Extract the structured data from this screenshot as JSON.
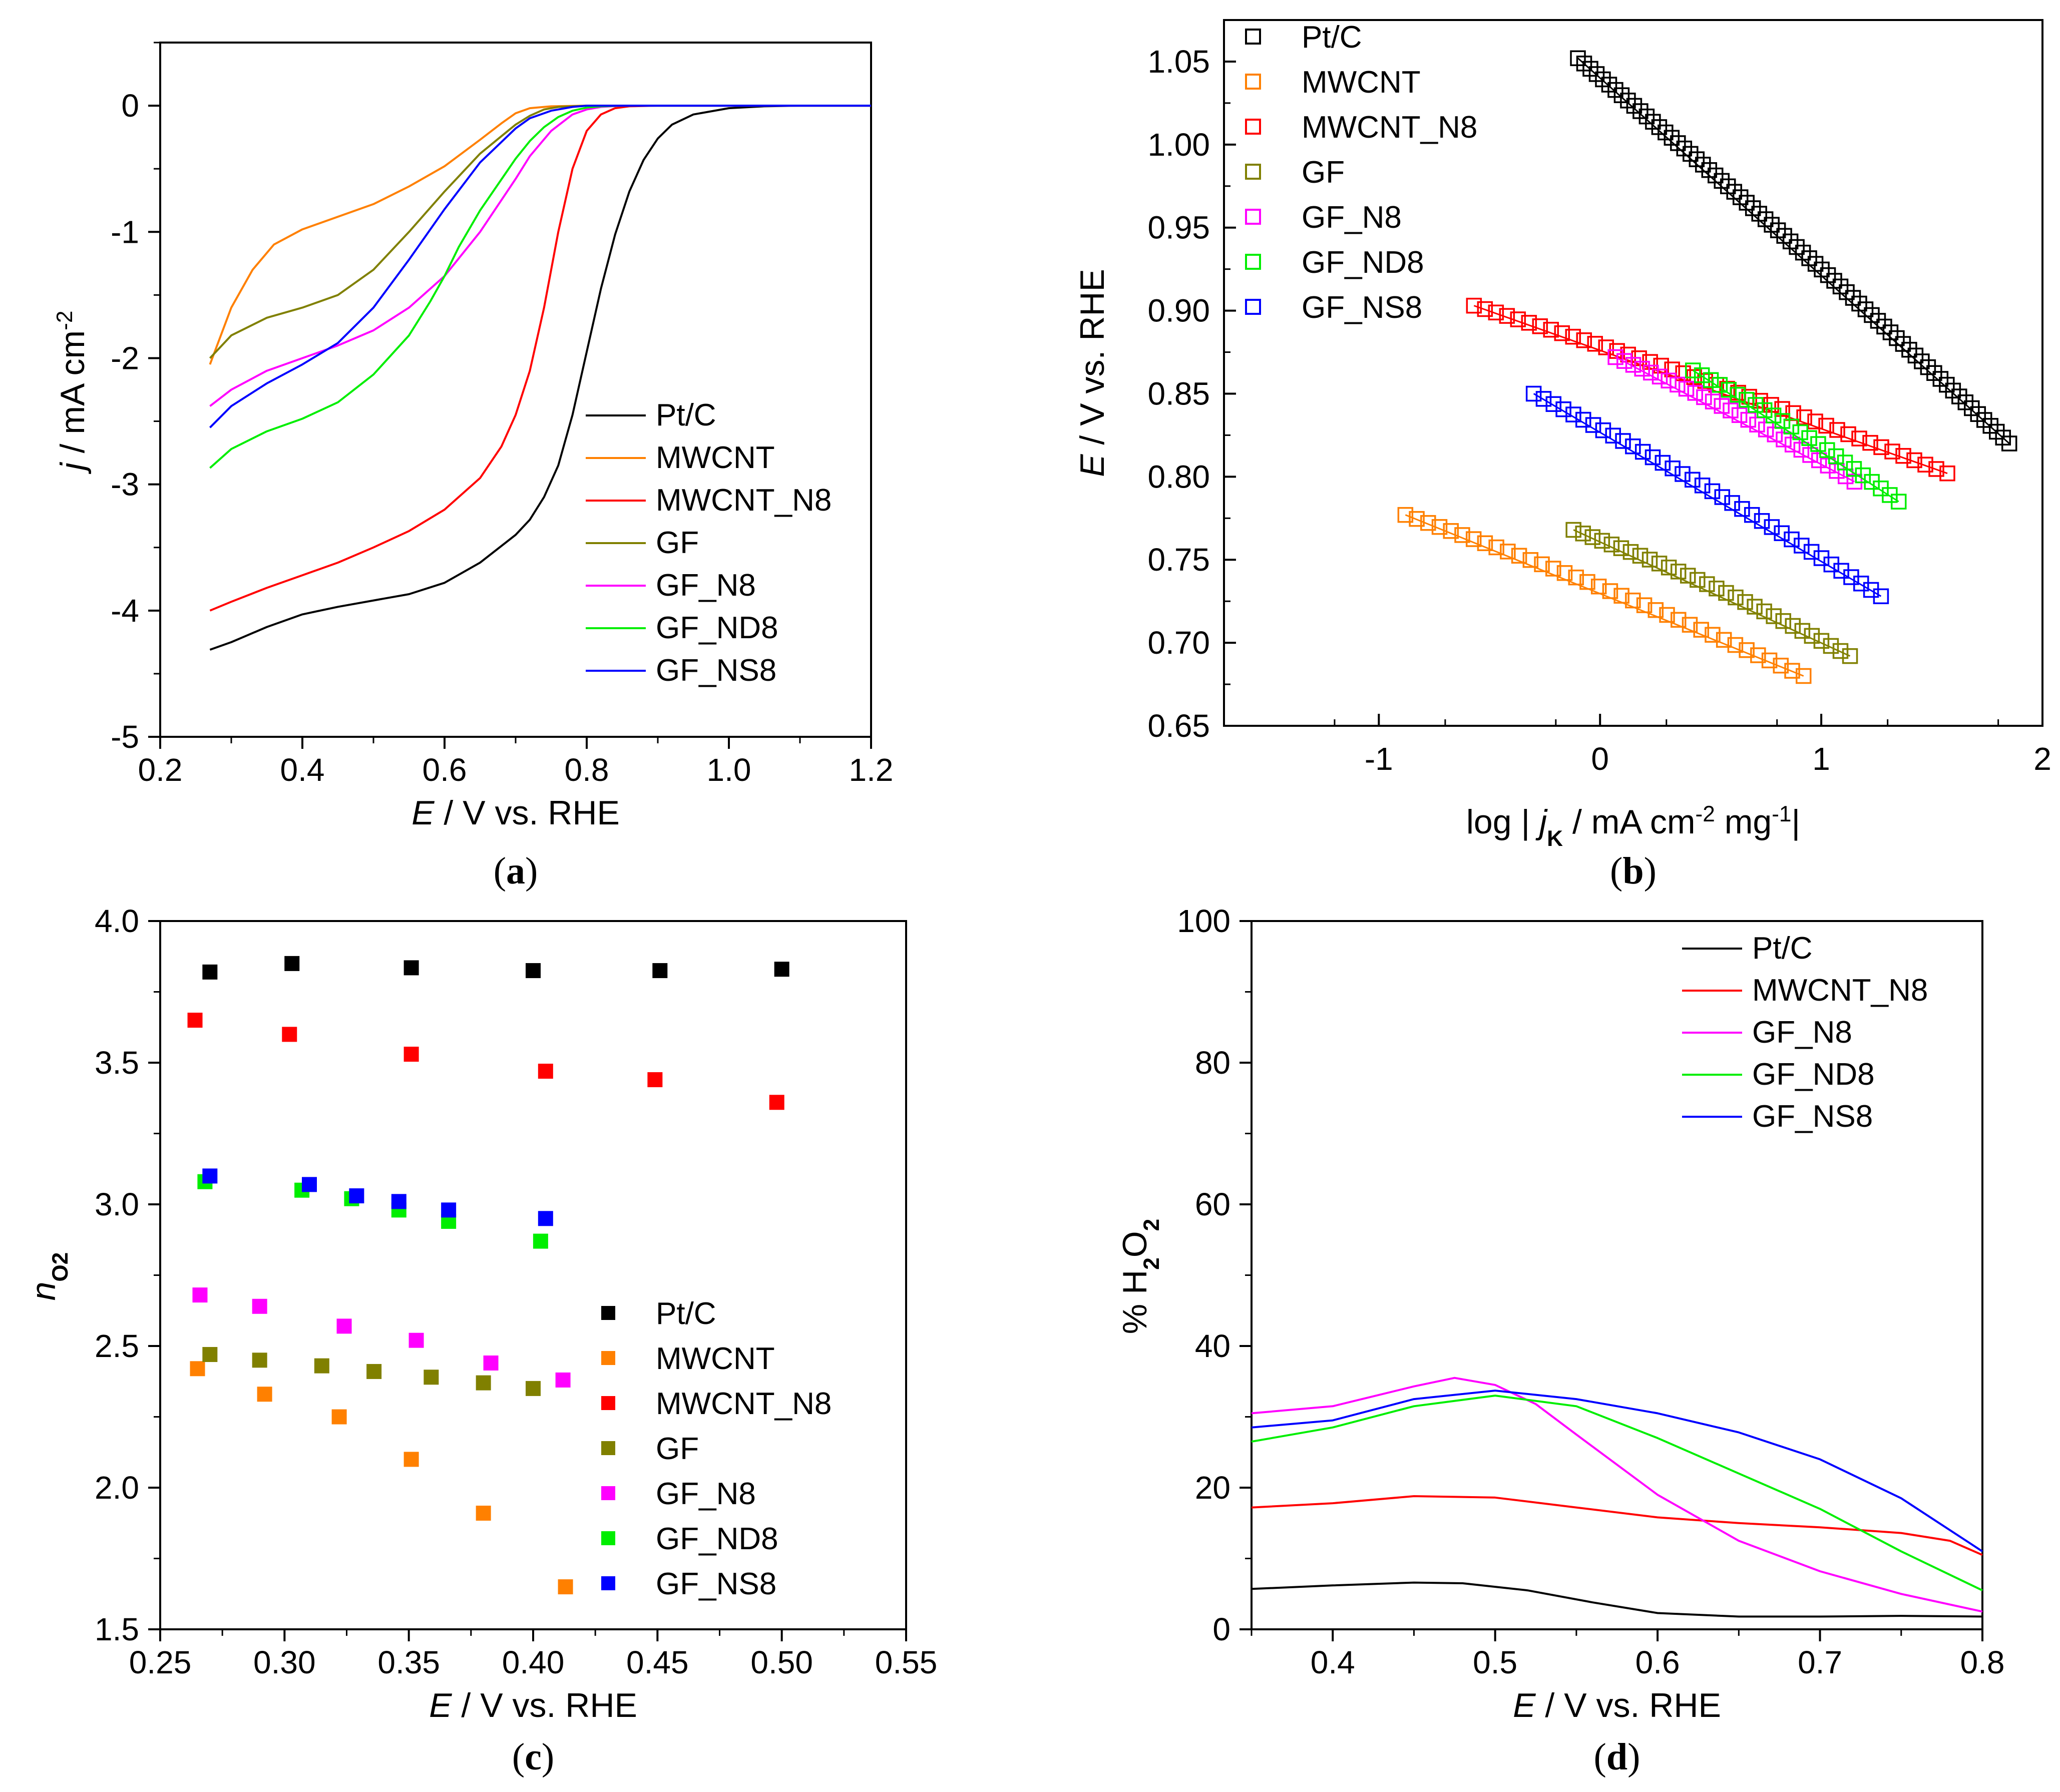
{
  "colors": {
    "Pt/C": "#000000",
    "MWCNT": "#ff8000",
    "MWCNT_N8": "#ff0000",
    "GF": "#808000",
    "GF_N8": "#ff00ff",
    "GF_ND8": "#00ee00",
    "GF_NS8": "#0000ff"
  },
  "chart_data": [
    {
      "panel": "a",
      "caption": [
        "(",
        "a",
        ")"
      ],
      "type": "line",
      "xlabel": [
        "E",
        " / V vs. RHE"
      ],
      "ylabel": [
        "j",
        " / mA cm",
        "-2"
      ],
      "xlim": [
        0.2,
        1.2
      ],
      "ylim": [
        -5,
        0.5
      ],
      "xticks": [
        "0.2",
        "0.4",
        "0.6",
        "0.8",
        "1.0",
        "1.2"
      ],
      "yticks": [
        "-5",
        "-4",
        "-3",
        "-2",
        "-1",
        "0"
      ],
      "legend": [
        "Pt/C",
        "MWCNT",
        "MWCNT_N8",
        "GF",
        "GF_N8",
        "GF_ND8",
        "GF_NS8"
      ],
      "series": [
        {
          "name": "Pt/C",
          "x": [
            0.27,
            0.3,
            0.35,
            0.4,
            0.45,
            0.5,
            0.55,
            0.6,
            0.65,
            0.7,
            0.72,
            0.74,
            0.76,
            0.78,
            0.8,
            0.82,
            0.84,
            0.86,
            0.88,
            0.9,
            0.92,
            0.95,
            1.0,
            1.05,
            1.1,
            1.2
          ],
          "y": [
            -4.31,
            -4.25,
            -4.13,
            -4.03,
            -3.97,
            -3.92,
            -3.87,
            -3.78,
            -3.62,
            -3.4,
            -3.28,
            -3.1,
            -2.85,
            -2.45,
            -1.95,
            -1.45,
            -1.02,
            -0.68,
            -0.43,
            -0.26,
            -0.15,
            -0.07,
            -0.02,
            -0.005,
            0.0,
            0.0
          ]
        },
        {
          "name": "MWCNT",
          "x": [
            0.27,
            0.3,
            0.33,
            0.36,
            0.4,
            0.45,
            0.5,
            0.55,
            0.6,
            0.65,
            0.68,
            0.7,
            0.72,
            0.75,
            0.8,
            1.2
          ],
          "y": [
            -2.05,
            -1.6,
            -1.3,
            -1.1,
            -0.98,
            -0.88,
            -0.78,
            -0.64,
            -0.48,
            -0.27,
            -0.14,
            -0.06,
            -0.02,
            -0.005,
            0.0,
            0.0
          ]
        },
        {
          "name": "MWCNT_N8",
          "x": [
            0.27,
            0.3,
            0.35,
            0.4,
            0.45,
            0.5,
            0.55,
            0.6,
            0.65,
            0.68,
            0.7,
            0.72,
            0.74,
            0.76,
            0.78,
            0.8,
            0.82,
            0.84,
            0.86,
            0.9,
            1.0,
            1.2
          ],
          "y": [
            -4.0,
            -3.93,
            -3.82,
            -3.72,
            -3.62,
            -3.5,
            -3.37,
            -3.2,
            -2.95,
            -2.7,
            -2.45,
            -2.1,
            -1.6,
            -1.0,
            -0.5,
            -0.2,
            -0.07,
            -0.02,
            -0.005,
            0.0,
            0.0,
            0.0
          ]
        },
        {
          "name": "GF",
          "x": [
            0.27,
            0.3,
            0.35,
            0.4,
            0.45,
            0.5,
            0.55,
            0.6,
            0.65,
            0.7,
            0.72,
            0.74,
            0.76,
            0.8,
            0.85,
            1.2
          ],
          "y": [
            -2.0,
            -1.82,
            -1.68,
            -1.6,
            -1.5,
            -1.3,
            -1.0,
            -0.68,
            -0.38,
            -0.15,
            -0.08,
            -0.03,
            -0.01,
            0.0,
            0.0,
            0.0
          ]
        },
        {
          "name": "GF_N8",
          "x": [
            0.27,
            0.3,
            0.35,
            0.4,
            0.45,
            0.5,
            0.55,
            0.6,
            0.65,
            0.7,
            0.72,
            0.75,
            0.78,
            0.8,
            0.82,
            0.85,
            0.9,
            1.2
          ],
          "y": [
            -2.38,
            -2.25,
            -2.1,
            -2.0,
            -1.9,
            -1.78,
            -1.6,
            -1.35,
            -1.0,
            -0.58,
            -0.4,
            -0.2,
            -0.07,
            -0.03,
            -0.01,
            0.0,
            0.0,
            0.0
          ]
        },
        {
          "name": "GF_ND8",
          "x": [
            0.27,
            0.3,
            0.35,
            0.4,
            0.45,
            0.5,
            0.55,
            0.58,
            0.6,
            0.62,
            0.65,
            0.7,
            0.72,
            0.74,
            0.76,
            0.78,
            0.8,
            0.82,
            0.85,
            0.9,
            1.2
          ],
          "y": [
            -2.87,
            -2.72,
            -2.58,
            -2.48,
            -2.35,
            -2.13,
            -1.82,
            -1.55,
            -1.35,
            -1.12,
            -0.83,
            -0.42,
            -0.28,
            -0.17,
            -0.09,
            -0.04,
            -0.015,
            -0.005,
            0.0,
            0.0,
            0.0
          ]
        },
        {
          "name": "GF_NS8",
          "x": [
            0.27,
            0.3,
            0.35,
            0.4,
            0.45,
            0.5,
            0.55,
            0.6,
            0.65,
            0.7,
            0.72,
            0.75,
            0.78,
            0.8,
            0.85,
            1.2
          ],
          "y": [
            -2.55,
            -2.38,
            -2.2,
            -2.05,
            -1.88,
            -1.6,
            -1.22,
            -0.82,
            -0.45,
            -0.18,
            -0.1,
            -0.04,
            -0.01,
            0.0,
            0.0,
            0.0
          ]
        }
      ]
    },
    {
      "panel": "b",
      "caption": [
        "(",
        "b",
        ")"
      ],
      "type": "scatter",
      "xlabel": [
        "log | ",
        "j",
        "K",
        " / mA cm",
        "-2",
        " mg",
        "-1",
        "|"
      ],
      "ylabel": [
        "E",
        " / V vs. RHE"
      ],
      "xlim": [
        -1.7,
        2.0
      ],
      "ylim": [
        0.65,
        1.075
      ],
      "xticks": [
        "-1",
        "0",
        "1",
        "2"
      ],
      "yticks": [
        "0.65",
        "0.70",
        "0.75",
        "0.80",
        "0.85",
        "0.90",
        "0.95",
        "1.00",
        "1.05"
      ],
      "legend": [
        "Pt/C",
        "MWCNT",
        "MWCNT_N8",
        "GF",
        "GF_N8",
        "GF_ND8",
        "GF_NS8"
      ],
      "series": [
        {
          "name": "Pt/C",
          "x_range": [
            -0.1,
            1.85
          ],
          "y_range": [
            1.052,
            0.82
          ],
          "points": 70
        },
        {
          "name": "MWCNT",
          "x_range": [
            -0.88,
            0.92
          ],
          "y_range": [
            0.777,
            0.68
          ],
          "points": 36
        },
        {
          "name": "MWCNT_N8",
          "x_range": [
            -0.57,
            1.57
          ],
          "y_range": [
            0.903,
            0.802
          ],
          "points": 44
        },
        {
          "name": "GF",
          "x_range": [
            -0.12,
            1.13
          ],
          "y_range": [
            0.768,
            0.692
          ],
          "points": 30
        },
        {
          "name": "GF_N8",
          "x_range": [
            0.07,
            1.15
          ],
          "y_range": [
            0.872,
            0.797
          ],
          "points": 28
        },
        {
          "name": "GF_ND8",
          "x_range": [
            0.42,
            1.35
          ],
          "y_range": [
            0.864,
            0.785
          ],
          "points": 24
        },
        {
          "name": "GF_NS8",
          "x_range": [
            -0.3,
            1.27
          ],
          "y_range": [
            0.85,
            0.728
          ],
          "points": 36
        }
      ]
    },
    {
      "panel": "c",
      "caption": [
        "(",
        "c",
        ")"
      ],
      "type": "scatter",
      "xlabel": [
        "E",
        " / V vs. RHE"
      ],
      "ylabel": [
        "n",
        "O2"
      ],
      "xlim": [
        0.25,
        0.55
      ],
      "ylim": [
        1.5,
        4.0
      ],
      "xticks": [
        "0.25",
        "0.30",
        "0.35",
        "0.40",
        "0.45",
        "0.50",
        "0.55"
      ],
      "yticks": [
        "1.5",
        "2.0",
        "2.5",
        "3.0",
        "3.5",
        "4.0"
      ],
      "legend": [
        "Pt/C",
        "MWCNT",
        "MWCNT_N8",
        "GF",
        "GF_N8",
        "GF_ND8",
        "GF_NS8"
      ],
      "series": [
        {
          "name": "Pt/C",
          "x": [
            0.27,
            0.303,
            0.351,
            0.4,
            0.451,
            0.5
          ],
          "y": [
            3.82,
            3.85,
            3.835,
            3.825,
            3.825,
            3.83
          ]
        },
        {
          "name": "MWCNT",
          "x": [
            0.265,
            0.292,
            0.322,
            0.351,
            0.38,
            0.413
          ],
          "y": [
            2.42,
            2.33,
            2.25,
            2.1,
            1.91,
            1.65
          ]
        },
        {
          "name": "MWCNT_N8",
          "x": [
            0.264,
            0.302,
            0.351,
            0.405,
            0.449,
            0.498
          ],
          "y": [
            3.65,
            3.6,
            3.53,
            3.47,
            3.44,
            3.36
          ]
        },
        {
          "name": "GF",
          "x": [
            0.27,
            0.29,
            0.315,
            0.336,
            0.359,
            0.38,
            0.4
          ],
          "y": [
            2.47,
            2.45,
            2.43,
            2.41,
            2.39,
            2.37,
            2.35
          ]
        },
        {
          "name": "GF_N8",
          "x": [
            0.266,
            0.29,
            0.324,
            0.353,
            0.383,
            0.412
          ],
          "y": [
            2.68,
            2.64,
            2.57,
            2.52,
            2.44,
            2.38
          ]
        },
        {
          "name": "GF_ND8",
          "x": [
            0.268,
            0.307,
            0.327,
            0.346,
            0.366,
            0.403
          ],
          "y": [
            3.08,
            3.05,
            3.02,
            2.98,
            2.94,
            2.87
          ]
        },
        {
          "name": "GF_NS8",
          "x": [
            0.27,
            0.31,
            0.329,
            0.346,
            0.366,
            0.405
          ],
          "y": [
            3.1,
            3.07,
            3.03,
            3.01,
            2.98,
            2.95
          ]
        }
      ]
    },
    {
      "panel": "d",
      "caption": [
        "(",
        "d",
        ")"
      ],
      "type": "line",
      "xlabel": [
        "E",
        " / V vs. RHE"
      ],
      "ylabel": [
        "% H",
        "2",
        "O",
        "2"
      ],
      "xlim": [
        0.35,
        0.8
      ],
      "ylim": [
        0,
        100
      ],
      "xticks": [
        "0.4",
        "0.5",
        "0.6",
        "0.7",
        "0.8"
      ],
      "yticks": [
        "0",
        "20",
        "40",
        "60",
        "80",
        "100"
      ],
      "legend": [
        "Pt/C",
        "MWCNT_N8",
        "GF_N8",
        "GF_ND8",
        "GF_NS8"
      ],
      "series": [
        {
          "name": "Pt/C",
          "x": [
            0.35,
            0.4,
            0.45,
            0.48,
            0.52,
            0.56,
            0.6,
            0.65,
            0.7,
            0.75,
            0.8
          ],
          "y": [
            5.7,
            6.2,
            6.6,
            6.5,
            5.5,
            3.8,
            2.3,
            1.8,
            1.8,
            1.9,
            1.8
          ]
        },
        {
          "name": "MWCNT_N8",
          "x": [
            0.35,
            0.4,
            0.45,
            0.5,
            0.55,
            0.6,
            0.65,
            0.7,
            0.75,
            0.78,
            0.8
          ],
          "y": [
            17.2,
            17.8,
            18.8,
            18.6,
            17.2,
            15.8,
            15.0,
            14.4,
            13.6,
            12.5,
            10.5
          ]
        },
        {
          "name": "GF_N8",
          "x": [
            0.35,
            0.4,
            0.45,
            0.475,
            0.5,
            0.525,
            0.55,
            0.6,
            0.65,
            0.7,
            0.75,
            0.8
          ],
          "y": [
            30.5,
            31.5,
            34.3,
            35.5,
            34.5,
            31.8,
            27.5,
            19.0,
            12.5,
            8.2,
            5.0,
            2.5
          ]
        },
        {
          "name": "GF_ND8",
          "x": [
            0.35,
            0.4,
            0.45,
            0.5,
            0.55,
            0.6,
            0.65,
            0.7,
            0.75,
            0.8
          ],
          "y": [
            26.5,
            28.5,
            31.5,
            33.0,
            31.5,
            27.0,
            22.0,
            17.0,
            11.0,
            5.5
          ]
        },
        {
          "name": "GF_NS8",
          "x": [
            0.35,
            0.4,
            0.45,
            0.5,
            0.55,
            0.6,
            0.65,
            0.7,
            0.75,
            0.8
          ],
          "y": [
            28.5,
            29.5,
            32.5,
            33.7,
            32.5,
            30.5,
            27.8,
            24.0,
            18.5,
            11.0
          ]
        }
      ]
    }
  ]
}
